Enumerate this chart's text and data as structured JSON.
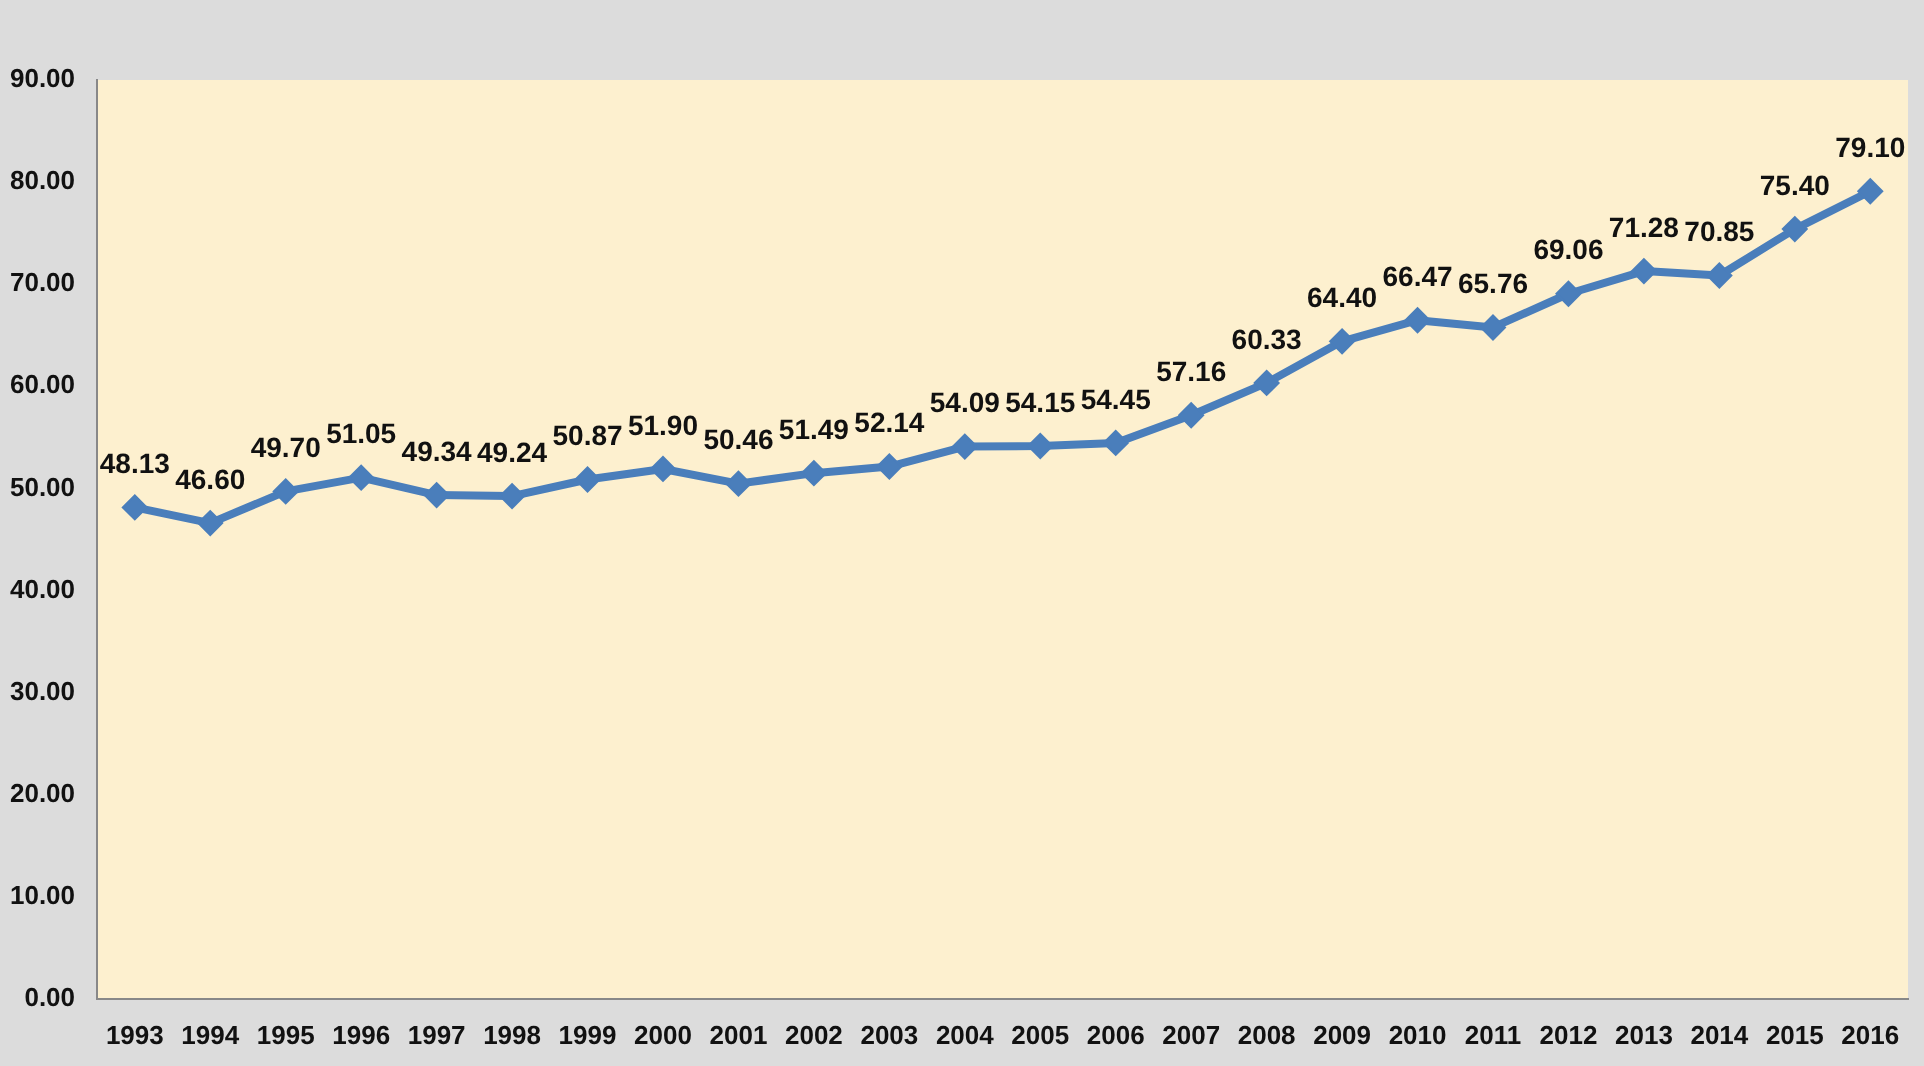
{
  "chart_data": {
    "type": "line",
    "categories": [
      "1993",
      "1994",
      "1995",
      "1996",
      "1997",
      "1998",
      "1999",
      "2000",
      "2001",
      "2002",
      "2003",
      "2004",
      "2005",
      "2006",
      "2007",
      "2008",
      "2009",
      "2010",
      "2011",
      "2012",
      "2013",
      "2014",
      "2015",
      "2016"
    ],
    "series": [
      {
        "color": "#4a7ebb",
        "values": [
          48.13,
          46.6,
          49.7,
          51.05,
          49.34,
          49.24,
          50.87,
          51.9,
          50.46,
          51.49,
          52.14,
          54.09,
          54.15,
          54.45,
          57.16,
          60.33,
          64.4,
          66.47,
          65.76,
          69.06,
          71.28,
          70.85,
          75.4,
          79.1
        ],
        "value_labels": [
          "48.13",
          "46.60",
          "49.70",
          "51.05",
          "49.34",
          "49.24",
          "50.87",
          "51.90",
          "50.46",
          "51.49",
          "52.14",
          "54.09",
          "54.15",
          "54.45",
          "57.16",
          "60.33",
          "64.40",
          "66.47",
          "65.76",
          "69.06",
          "71.28",
          "70.85",
          "75.40",
          "79.10"
        ]
      }
    ],
    "ylim": [
      0,
      90
    ],
    "yticks": [
      {
        "value": 0,
        "label": "0.00"
      },
      {
        "value": 10,
        "label": "10.00"
      },
      {
        "value": 20,
        "label": "20.00"
      },
      {
        "value": 30,
        "label": "30.00"
      },
      {
        "value": 40,
        "label": "40.00"
      },
      {
        "value": 50,
        "label": "50.00"
      },
      {
        "value": 60,
        "label": "60.00"
      },
      {
        "value": 70,
        "label": "70.00"
      },
      {
        "value": 80,
        "label": "80.00"
      },
      {
        "value": 90,
        "label": "90.00"
      }
    ],
    "grid": false,
    "legend": false,
    "marker": "diamond",
    "line_style": "solid"
  }
}
